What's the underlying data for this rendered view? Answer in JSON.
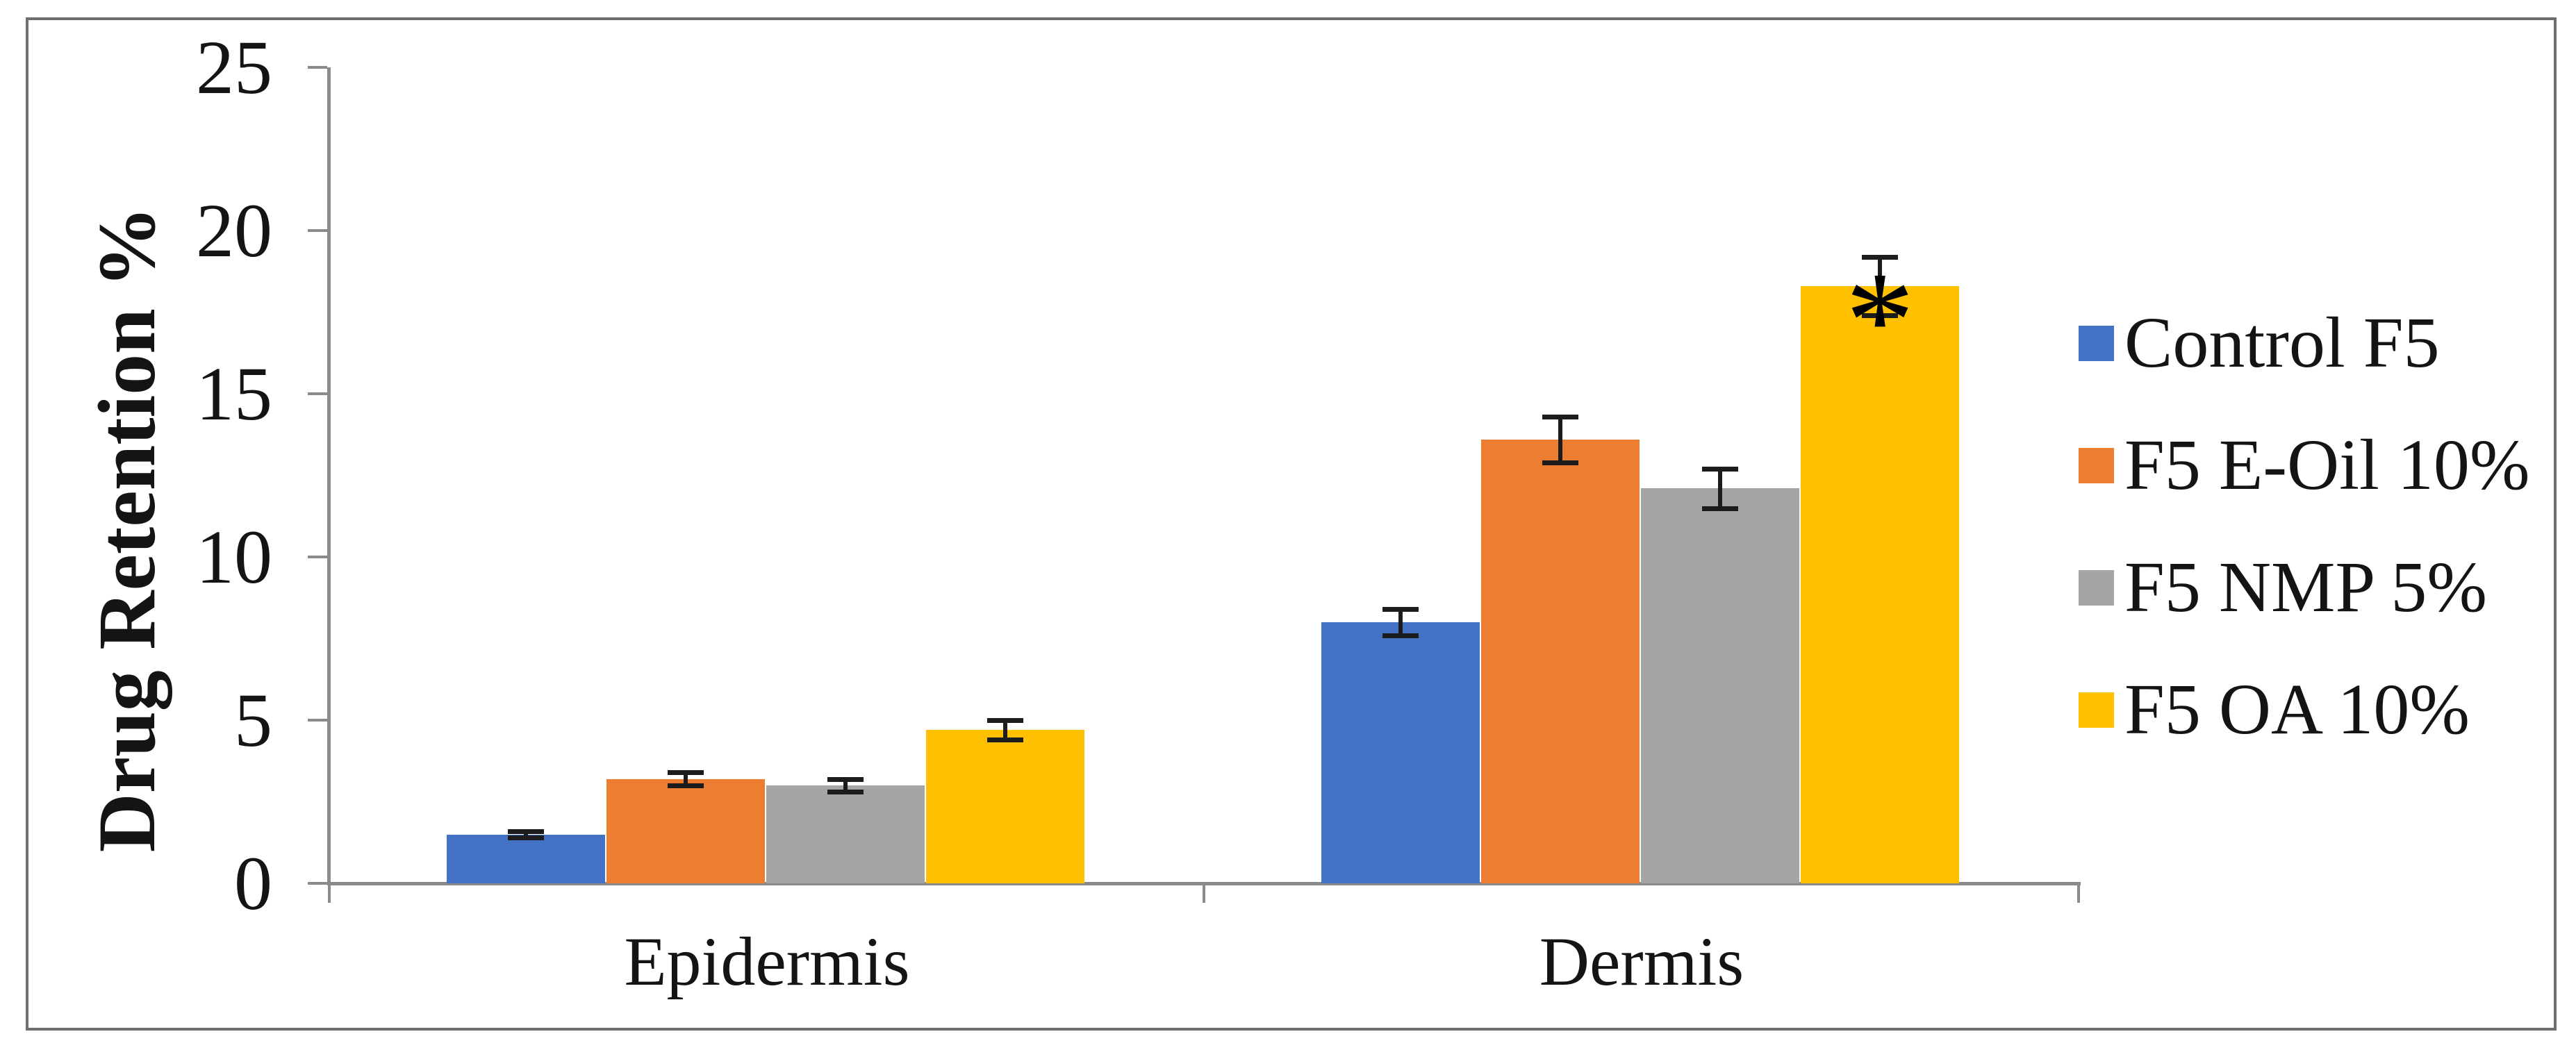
{
  "chart_data": {
    "type": "bar",
    "title": "",
    "ylabel": "Drug Retention %",
    "xlabel": "",
    "categories": [
      "Epidermis",
      "Dermis"
    ],
    "series": [
      {
        "name": "Control F5",
        "color": "#4472C4",
        "values": [
          1.5,
          8.0
        ],
        "errors": [
          0.1,
          0.4
        ]
      },
      {
        "name": "F5 E-Oil 10%",
        "color": "#ED7D31",
        "values": [
          3.2,
          13.6
        ],
        "errors": [
          0.2,
          0.7
        ]
      },
      {
        "name": "F5 NMP 5%",
        "color": "#A5A5A5",
        "values": [
          3.0,
          12.1
        ],
        "errors": [
          0.2,
          0.6
        ]
      },
      {
        "name": "F5 OA 10%",
        "color": "#FFC000",
        "values": [
          4.7,
          18.3
        ],
        "errors": [
          0.3,
          0.9
        ]
      }
    ],
    "ylim": [
      0,
      25
    ],
    "yticks": [
      0,
      5,
      10,
      15,
      20,
      25
    ],
    "grid": false,
    "legend_position": "right",
    "annotations": [
      {
        "text": "*",
        "category": "Dermis",
        "series": "F5 OA 10%"
      }
    ]
  }
}
